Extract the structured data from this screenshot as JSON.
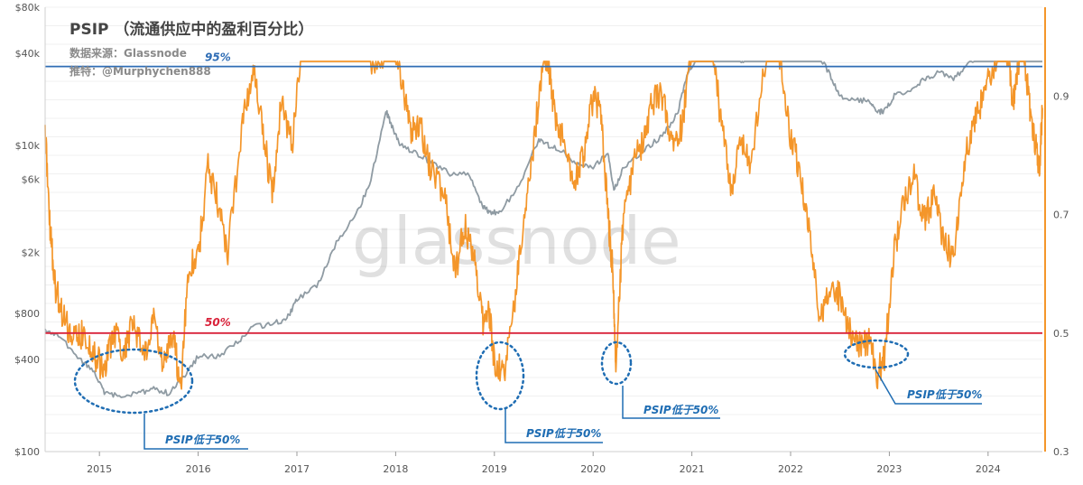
{
  "chart_data": {
    "type": "line",
    "title": "PSIP （流通供应中的盈利百分比）",
    "source": "数据来源：Glassnode",
    "twitter": "推特：@Murphychen888",
    "watermark": "glassnode",
    "x_ticks": [
      "2015",
      "2016",
      "2017",
      "2018",
      "2019",
      "2020",
      "2021",
      "2022",
      "2023",
      "2024"
    ],
    "xlim": [
      2014.45,
      2024.55
    ],
    "left_axis": {
      "scale": "log",
      "lim": [
        100,
        80000
      ],
      "ticks": [
        "$100",
        "$400",
        "$800",
        "$2k",
        "$6k",
        "$10k",
        "$40k",
        "$80k"
      ],
      "tick_values": [
        100,
        400,
        800,
        2000,
        6000,
        10000,
        40000,
        80000
      ]
    },
    "right_axis": {
      "lim": [
        0.3,
        1.05
      ],
      "ticks": [
        "0.3",
        "0.5",
        "0.7",
        "0.9"
      ],
      "tick_values": [
        0.3,
        0.5,
        0.7,
        0.9
      ]
    },
    "reference_lines": [
      {
        "label": "95%",
        "value": 0.95,
        "color": "#2f6db5"
      },
      {
        "label": "50%",
        "value": 0.5,
        "color": "#d9223a"
      }
    ],
    "series": [
      {
        "axis": "left",
        "color": "#8f9ba3",
        "x": [
          2014.45,
          2014.6,
          2014.8,
          2014.95,
          2015.05,
          2015.2,
          2015.4,
          2015.55,
          2015.7,
          2015.85,
          2016.0,
          2016.2,
          2016.4,
          2016.55,
          2016.75,
          2016.9,
          2017.0,
          2017.2,
          2017.4,
          2017.6,
          2017.75,
          2017.9,
          2017.96,
          2018.05,
          2018.2,
          2018.35,
          2018.55,
          2018.75,
          2018.88,
          2018.95,
          2019.05,
          2019.25,
          2019.45,
          2019.55,
          2019.7,
          2019.85,
          2020.0,
          2020.15,
          2020.21,
          2020.3,
          2020.5,
          2020.7,
          2020.85,
          2020.95,
          2021.05,
          2021.15,
          2021.3,
          2021.4,
          2021.5,
          2021.6,
          2021.75,
          2021.85,
          2021.95,
          2022.1,
          2022.25,
          2022.4,
          2022.5,
          2022.65,
          2022.8,
          2022.88,
          2022.95,
          2023.05,
          2023.2,
          2023.35,
          2023.5,
          2023.65,
          2023.8,
          2023.95,
          2024.1,
          2024.2,
          2024.35,
          2024.5,
          2024.55
        ],
        "values": [
          620,
          560,
          400,
          330,
          240,
          230,
          240,
          260,
          240,
          300,
          420,
          420,
          520,
          650,
          680,
          740,
          980,
          1200,
          2300,
          3500,
          6000,
          17000,
          13500,
          10000,
          9000,
          7800,
          6500,
          6500,
          4000,
          3700,
          3600,
          5500,
          11000,
          10000,
          9000,
          7500,
          7200,
          9000,
          5000,
          7000,
          9200,
          11500,
          16000,
          29000,
          36000,
          56000,
          58000,
          39000,
          35000,
          40000,
          48000,
          62000,
          47000,
          38000,
          43000,
          29000,
          21000,
          20000,
          19500,
          16500,
          16800,
          21000,
          23000,
          27000,
          30000,
          27000,
          34000,
          42000,
          47000,
          68000,
          66000,
          63000,
          60000
        ]
      },
      {
        "axis": "right",
        "color": "#f4962a",
        "x": [
          2014.45,
          2014.5,
          2014.55,
          2014.65,
          2014.75,
          2014.85,
          2014.95,
          2015.05,
          2015.15,
          2015.25,
          2015.35,
          2015.45,
          2015.55,
          2015.65,
          2015.75,
          2015.82,
          2015.9,
          2016.0,
          2016.1,
          2016.2,
          2016.3,
          2016.45,
          2016.55,
          2016.65,
          2016.75,
          2016.85,
          2016.95,
          2017.05,
          2017.2,
          2017.35,
          2017.5,
          2017.65,
          2017.8,
          2017.96,
          2018.05,
          2018.15,
          2018.25,
          2018.35,
          2018.5,
          2018.6,
          2018.7,
          2018.8,
          2018.88,
          2018.95,
          2019.0,
          2019.1,
          2019.2,
          2019.3,
          2019.4,
          2019.5,
          2019.55,
          2019.6,
          2019.7,
          2019.8,
          2019.9,
          2020.0,
          2020.08,
          2020.15,
          2020.2,
          2020.23,
          2020.3,
          2020.4,
          2020.5,
          2020.6,
          2020.7,
          2020.8,
          2020.9,
          2021.0,
          2021.1,
          2021.2,
          2021.3,
          2021.4,
          2021.5,
          2021.6,
          2021.75,
          2021.85,
          2021.9,
          2022.0,
          2022.1,
          2022.2,
          2022.3,
          2022.4,
          2022.5,
          2022.6,
          2022.7,
          2022.8,
          2022.88,
          2022.95,
          2023.05,
          2023.15,
          2023.25,
          2023.35,
          2023.45,
          2023.55,
          2023.65,
          2023.75,
          2023.85,
          2023.95,
          2024.05,
          2024.15,
          2024.2,
          2024.25,
          2024.3,
          2024.35,
          2024.42,
          2024.48,
          2024.52,
          2024.55
        ],
        "values": [
          0.84,
          0.68,
          0.58,
          0.52,
          0.49,
          0.5,
          0.46,
          0.44,
          0.5,
          0.47,
          0.52,
          0.45,
          0.53,
          0.44,
          0.5,
          0.4,
          0.61,
          0.63,
          0.78,
          0.72,
          0.64,
          0.85,
          0.95,
          0.85,
          0.73,
          0.9,
          0.81,
          1.0,
          0.98,
          1.0,
          1.0,
          0.99,
          0.95,
          1.0,
          0.94,
          0.84,
          0.85,
          0.78,
          0.73,
          0.6,
          0.68,
          0.63,
          0.52,
          0.53,
          0.45,
          0.43,
          0.55,
          0.7,
          0.82,
          0.98,
          0.95,
          0.88,
          0.82,
          0.75,
          0.8,
          0.9,
          0.87,
          0.7,
          0.6,
          0.44,
          0.68,
          0.78,
          0.82,
          0.89,
          0.9,
          0.82,
          0.85,
          0.99,
          0.98,
          1.0,
          0.85,
          0.74,
          0.82,
          0.78,
          0.97,
          1.0,
          0.96,
          0.83,
          0.77,
          0.66,
          0.52,
          0.58,
          0.56,
          0.5,
          0.48,
          0.49,
          0.43,
          0.46,
          0.64,
          0.72,
          0.76,
          0.69,
          0.73,
          0.66,
          0.62,
          0.78,
          0.85,
          0.9,
          0.95,
          1.0,
          0.97,
          0.89,
          0.95,
          1.0,
          0.88,
          0.82,
          0.78,
          0.88
        ]
      }
    ],
    "annotations": [
      {
        "label": "PSIP低于50%"
      },
      {
        "label": "PSIP低于50%"
      },
      {
        "label": "PSIP低于50%"
      },
      {
        "label": "PSIP低于50%"
      }
    ]
  }
}
